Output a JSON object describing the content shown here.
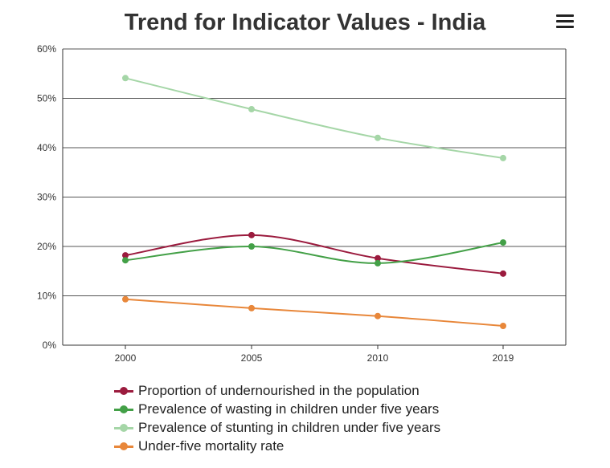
{
  "menu_icon": "hamburger-menu-icon",
  "chart_data": {
    "type": "line",
    "title": "Trend for Indicator Values - India",
    "categories": [
      "2000",
      "2005",
      "2010",
      "2019"
    ],
    "ylim": [
      0,
      60
    ],
    "yticks": [
      "0%",
      "10%",
      "20%",
      "30%",
      "40%",
      "50%",
      "60%"
    ],
    "grid": true,
    "legend_placement": "bottom",
    "smooth": true,
    "series": [
      {
        "name": "Proportion of undernourished in the population",
        "color": "#9b1b3e",
        "values": [
          18.2,
          22.3,
          17.6,
          14.5
        ]
      },
      {
        "name": "Prevalence of wasting in children under five years",
        "color": "#43a047",
        "values": [
          17.2,
          20.0,
          16.6,
          20.8
        ]
      },
      {
        "name": "Prevalence of stunting in children under five years",
        "color": "#a5d6a7",
        "values": [
          54.1,
          47.8,
          42.0,
          37.9
        ]
      },
      {
        "name": "Under-five mortality rate",
        "color": "#e8873a",
        "values": [
          9.3,
          7.5,
          5.9,
          3.9
        ]
      }
    ]
  }
}
